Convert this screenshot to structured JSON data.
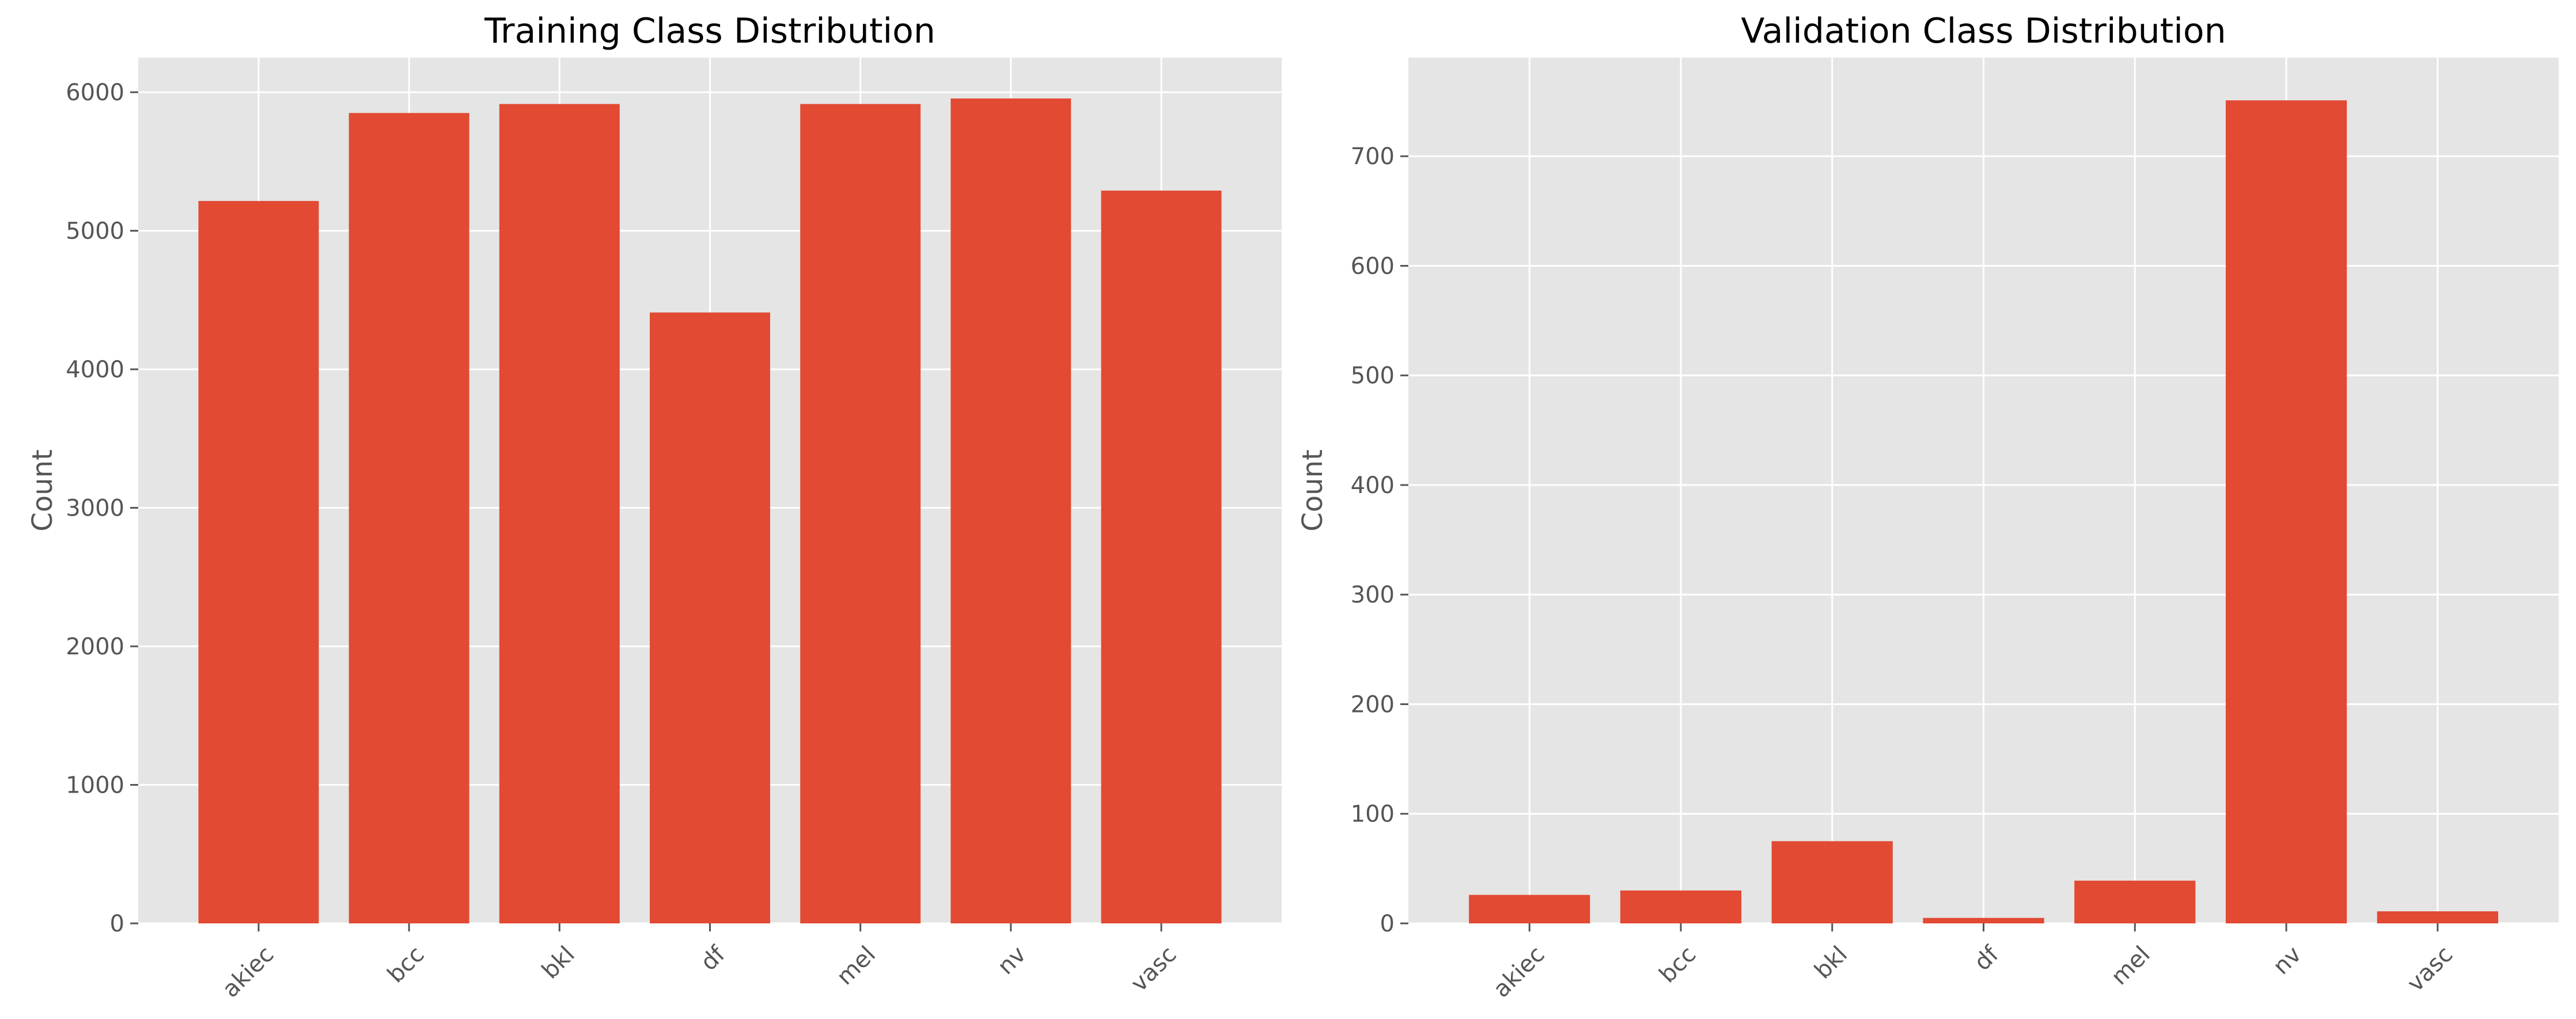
{
  "chart_data": [
    {
      "type": "bar",
      "title": "Training Class Distribution",
      "xlabel": "",
      "ylabel": "Count",
      "categories": [
        "akiec",
        "bcc",
        "bkl",
        "df",
        "mel",
        "nv",
        "vasc"
      ],
      "values": [
        5215,
        5850,
        5915,
        4410,
        5915,
        5955,
        5290
      ],
      "ylim": [
        0,
        6250
      ],
      "yticks": [
        0,
        1000,
        2000,
        3000,
        4000,
        5000,
        6000
      ],
      "grid": true,
      "legend": "none",
      "bar_color": "#E24A33",
      "plot_background": "#E5E5E5",
      "grid_color": "#FFFFFF"
    },
    {
      "type": "bar",
      "title": "Validation Class Distribution",
      "xlabel": "",
      "ylabel": "Count",
      "categories": [
        "akiec",
        "bcc",
        "bkl",
        "df",
        "mel",
        "nv",
        "vasc"
      ],
      "values": [
        26,
        30,
        75,
        5,
        39,
        751,
        11
      ],
      "ylim": [
        0,
        790
      ],
      "yticks": [
        0,
        100,
        200,
        300,
        400,
        500,
        600,
        700
      ],
      "grid": true,
      "legend": "none",
      "bar_color": "#E24A33",
      "plot_background": "#E5E5E5",
      "grid_color": "#FFFFFF"
    }
  ]
}
